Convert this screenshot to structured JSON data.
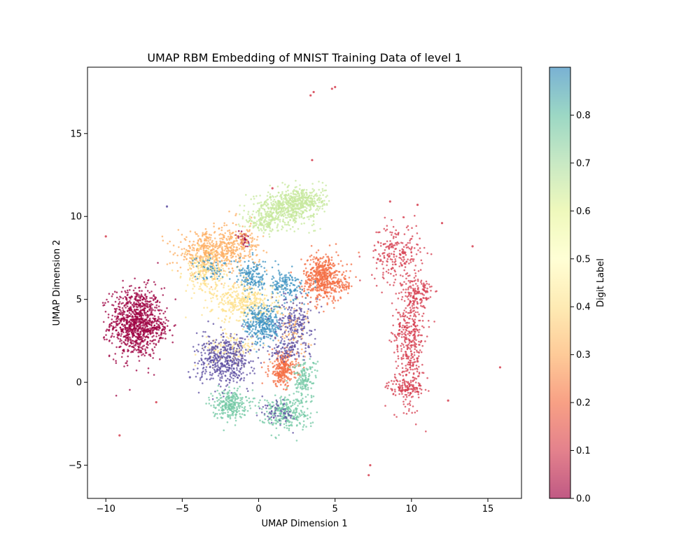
{
  "chart_data": {
    "type": "scatter",
    "title": "UMAP RBM Embedding of MNIST Training Data of level 1",
    "xlabel": "UMAP Dimension 1",
    "ylabel": "UMAP Dimension 2",
    "xlim": [
      -11.2,
      17.2
    ],
    "ylim": [
      -7.0,
      19.0
    ],
    "xticks": [
      -10,
      -5,
      0,
      5,
      10,
      15
    ],
    "xtick_labels": [
      "−10",
      "−5",
      "0",
      "5",
      "10",
      "15"
    ],
    "yticks": [
      -5,
      0,
      5,
      10,
      15
    ],
    "yticks_labels": [
      "−5",
      "0",
      "5",
      "10",
      "15"
    ],
    "grid": false,
    "colorbar": {
      "label": "Digit Label",
      "colormap": "Spectral",
      "range": [
        0.0,
        0.9
      ],
      "ticks": [
        0.0,
        0.1,
        0.2,
        0.3,
        0.4,
        0.5,
        0.6,
        0.7,
        0.8
      ],
      "tick_labels": [
        "0.0",
        "0.1",
        "0.2",
        "0.3",
        "0.4",
        "0.5",
        "0.6",
        "0.7",
        "0.8"
      ]
    },
    "clusters": [
      {
        "label_value": 0.0,
        "color": "#9e0142",
        "regions": [
          {
            "x": -8.0,
            "y": 3.6,
            "sx": 0.85,
            "sy": 1.05,
            "n": 950
          },
          {
            "x": -6.6,
            "y": 3.2,
            "sx": 0.35,
            "sy": 0.3,
            "n": 60
          },
          {
            "x": -1.0,
            "y": 8.6,
            "sx": 0.25,
            "sy": 0.25,
            "n": 40
          }
        ]
      },
      {
        "label_value": 0.1,
        "color": "#d53e4f",
        "regions": [
          {
            "x": 9.9,
            "y": 2.8,
            "sx": 0.5,
            "sy": 2.0,
            "n": 450
          },
          {
            "x": 9.0,
            "y": 7.8,
            "sx": 0.8,
            "sy": 0.9,
            "n": 220
          },
          {
            "x": 9.6,
            "y": -0.3,
            "sx": 0.6,
            "sy": 0.25,
            "n": 110
          },
          {
            "x": 10.6,
            "y": 5.3,
            "sx": 0.4,
            "sy": 0.6,
            "n": 90
          }
        ]
      },
      {
        "label_value": 0.2,
        "color": "#f46d43",
        "regions": [
          {
            "x": 4.2,
            "y": 6.3,
            "sx": 0.65,
            "sy": 0.7,
            "n": 520
          },
          {
            "x": 1.6,
            "y": 0.8,
            "sx": 0.45,
            "sy": 0.5,
            "n": 280
          },
          {
            "x": 5.6,
            "y": 5.9,
            "sx": 0.4,
            "sy": 0.2,
            "n": 40
          }
        ]
      },
      {
        "label_value": 0.3,
        "color": "#fdae61",
        "regions": [
          {
            "x": -3.3,
            "y": 7.8,
            "sx": 1.0,
            "sy": 0.6,
            "n": 420
          },
          {
            "x": -1.3,
            "y": 8.2,
            "sx": 0.7,
            "sy": 0.7,
            "n": 200
          },
          {
            "x": 2.2,
            "y": 3.2,
            "sx": 0.6,
            "sy": 0.8,
            "n": 80
          }
        ]
      },
      {
        "label_value": 0.4,
        "color": "#fee08b",
        "regions": [
          {
            "x": -0.8,
            "y": 4.8,
            "sx": 1.1,
            "sy": 0.6,
            "n": 380
          },
          {
            "x": -3.5,
            "y": 6.6,
            "sx": 0.7,
            "sy": 0.6,
            "n": 200
          },
          {
            "x": -1.8,
            "y": 2.0,
            "sx": 0.9,
            "sy": 0.5,
            "n": 120
          }
        ]
      },
      {
        "label_value": 0.6,
        "color": "#c7e89e",
        "regions": [
          {
            "x": 1.7,
            "y": 10.5,
            "sx": 1.0,
            "sy": 0.5,
            "n": 480
          },
          {
            "x": 3.0,
            "y": 11.0,
            "sx": 0.7,
            "sy": 0.4,
            "n": 260
          },
          {
            "x": 0.4,
            "y": 9.6,
            "sx": 0.6,
            "sy": 0.35,
            "n": 120
          }
        ]
      },
      {
        "label_value": 0.7,
        "color": "#73c8a4",
        "regions": [
          {
            "x": -1.9,
            "y": -1.3,
            "sx": 0.55,
            "sy": 0.45,
            "n": 260
          },
          {
            "x": 1.7,
            "y": -1.8,
            "sx": 0.8,
            "sy": 0.5,
            "n": 280
          },
          {
            "x": 3.0,
            "y": 0.2,
            "sx": 0.4,
            "sy": 0.6,
            "n": 140
          }
        ]
      },
      {
        "label_value": 0.8,
        "color": "#3e93c2",
        "regions": [
          {
            "x": 0.3,
            "y": 3.5,
            "sx": 0.6,
            "sy": 0.6,
            "n": 320
          },
          {
            "x": -0.4,
            "y": 6.4,
            "sx": 0.5,
            "sy": 0.5,
            "n": 150
          },
          {
            "x": 1.8,
            "y": 5.8,
            "sx": 0.6,
            "sy": 0.45,
            "n": 150
          },
          {
            "x": -3.0,
            "y": 6.9,
            "sx": 0.6,
            "sy": 0.4,
            "n": 60
          }
        ]
      },
      {
        "label_value": 0.9,
        "color": "#5e4fa2",
        "regions": [
          {
            "x": -2.2,
            "y": 1.3,
            "sx": 0.9,
            "sy": 0.75,
            "n": 480
          },
          {
            "x": 2.4,
            "y": 3.8,
            "sx": 0.55,
            "sy": 0.7,
            "n": 180
          },
          {
            "x": 1.9,
            "y": 2.0,
            "sx": 0.7,
            "sy": 0.35,
            "n": 110
          },
          {
            "x": 1.3,
            "y": -1.8,
            "sx": 0.5,
            "sy": 0.4,
            "n": 60
          }
        ]
      }
    ],
    "outliers": [
      {
        "x": 3.6,
        "y": 17.5,
        "label_value": 0.1
      },
      {
        "x": 3.4,
        "y": 17.3,
        "label_value": 0.1
      },
      {
        "x": 5.0,
        "y": 17.8,
        "label_value": 0.1
      },
      {
        "x": 4.8,
        "y": 17.7,
        "label_value": 0.1
      },
      {
        "x": 3.5,
        "y": 13.4,
        "label_value": 0.1
      },
      {
        "x": -10.0,
        "y": 8.8,
        "label_value": 0.1
      },
      {
        "x": -6.0,
        "y": 10.6,
        "label_value": 0.9
      },
      {
        "x": -6.7,
        "y": -1.2,
        "label_value": 0.1
      },
      {
        "x": -9.1,
        "y": -3.2,
        "label_value": 0.1
      },
      {
        "x": 7.3,
        "y": -5.0,
        "label_value": 0.1
      },
      {
        "x": 7.2,
        "y": -5.6,
        "label_value": 0.1
      },
      {
        "x": 15.8,
        "y": 0.9,
        "label_value": 0.1
      },
      {
        "x": 14.0,
        "y": 8.2,
        "label_value": 0.1
      },
      {
        "x": 12.0,
        "y": 9.6,
        "label_value": 0.1
      },
      {
        "x": 12.4,
        "y": -1.1,
        "label_value": 0.1
      },
      {
        "x": 10.4,
        "y": 10.7,
        "label_value": 0.1
      },
      {
        "x": 8.6,
        "y": 10.9,
        "label_value": 0.1
      },
      {
        "x": -4.5,
        "y": 0.3,
        "label_value": 0.9
      },
      {
        "x": 0.9,
        "y": 11.7,
        "label_value": 0.1
      }
    ]
  }
}
